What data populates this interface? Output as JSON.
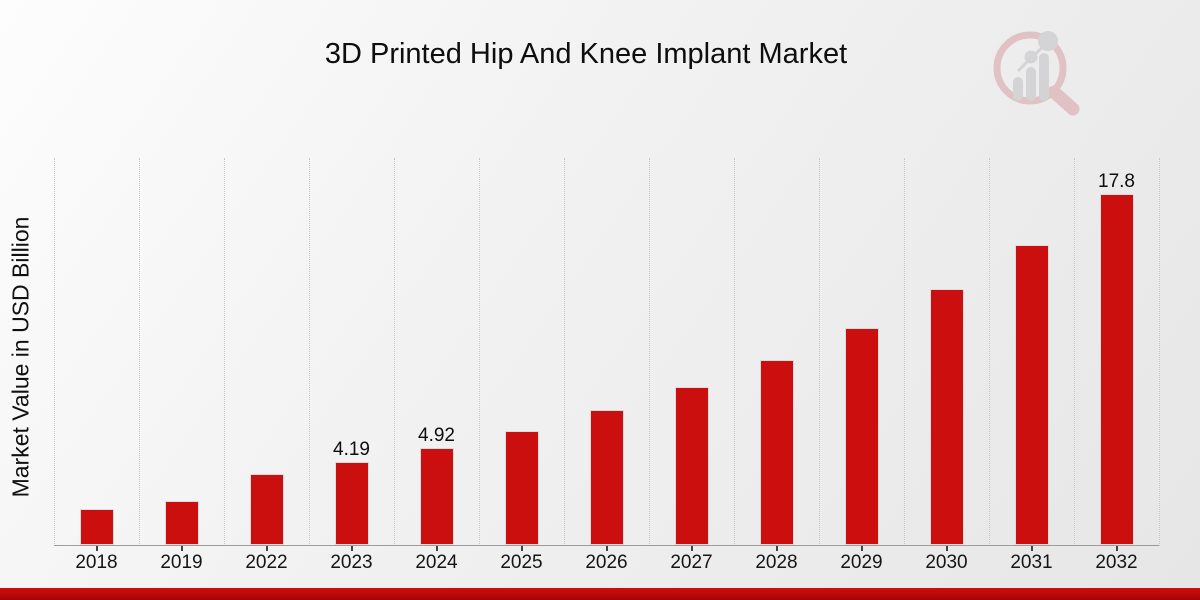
{
  "title": "3D Printed Hip And Knee Implant Market",
  "chart_data": {
    "type": "bar",
    "title": "3D Printed Hip And Knee Implant Market",
    "xlabel": "",
    "ylabel": "Market Value in USD Billion",
    "categories": [
      "2018",
      "2019",
      "2022",
      "2023",
      "2024",
      "2025",
      "2026",
      "2027",
      "2028",
      "2029",
      "2030",
      "2031",
      "2032"
    ],
    "values": [
      1.83,
      2.23,
      3.6,
      4.19,
      4.92,
      5.78,
      6.85,
      8.0,
      9.38,
      11.0,
      13.0,
      15.2,
      17.8
    ],
    "bar_labels": [
      "",
      "",
      "",
      "4.19",
      "4.92",
      "",
      "",
      "",
      "",
      "",
      "",
      "",
      "17.8"
    ],
    "ylim": [
      0,
      19.7
    ],
    "grid": "vertical-dotted-category-separators",
    "legend": "none",
    "bar_color": "#cb0e0e"
  },
  "colors": {
    "bar": "#cb0e0e",
    "footer_band_top": "#d40c0c",
    "footer_band_bottom": "#a30404",
    "gridline": "#c6c6c6",
    "axis_line": "#9c9c9c",
    "text": "#0e0e0e",
    "logo_pink": "#d5989e",
    "logo_gray": "#bcbcc2"
  },
  "logo": {
    "name": "market-research-future-watermark"
  }
}
